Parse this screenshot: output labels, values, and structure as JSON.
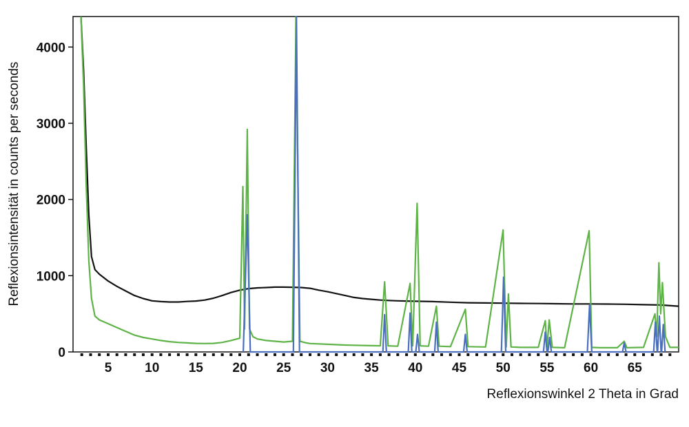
{
  "chart_data": {
    "type": "line",
    "title": "",
    "xlabel": "Reflexionswinkel 2 Theta in Grad",
    "ylabel": "Reflexionsintensität in counts per seconds",
    "xlim": [
      1,
      70
    ],
    "ylim": [
      0,
      4400
    ],
    "x_ticks": [
      5,
      10,
      15,
      20,
      25,
      30,
      35,
      40,
      45,
      50,
      55,
      60,
      65
    ],
    "y_ticks": [
      0,
      1000,
      2000,
      3000,
      4000
    ],
    "grid": false,
    "legend": "none",
    "series": [
      {
        "color": "#111111",
        "points": [
          [
            1.9,
            4400
          ],
          [
            2.2,
            3700
          ],
          [
            2.5,
            2700
          ],
          [
            2.8,
            1800
          ],
          [
            3.1,
            1250
          ],
          [
            3.5,
            1080
          ],
          [
            4,
            1020
          ],
          [
            5,
            930
          ],
          [
            6,
            860
          ],
          [
            7,
            800
          ],
          [
            8,
            740
          ],
          [
            9,
            700
          ],
          [
            10,
            670
          ],
          [
            11,
            660
          ],
          [
            12,
            655
          ],
          [
            13,
            655
          ],
          [
            14,
            662
          ],
          [
            15,
            668
          ],
          [
            16,
            680
          ],
          [
            17,
            705
          ],
          [
            18,
            740
          ],
          [
            19,
            780
          ],
          [
            20,
            810
          ],
          [
            21,
            830
          ],
          [
            22,
            840
          ],
          [
            23,
            845
          ],
          [
            24,
            850
          ],
          [
            25,
            850
          ],
          [
            26,
            848
          ],
          [
            27,
            845
          ],
          [
            28,
            835
          ],
          [
            29,
            810
          ],
          [
            30,
            790
          ],
          [
            31,
            765
          ],
          [
            32,
            740
          ],
          [
            33,
            715
          ],
          [
            34,
            700
          ],
          [
            35,
            690
          ],
          [
            36,
            680
          ],
          [
            37,
            675
          ],
          [
            38,
            670
          ],
          [
            39,
            668
          ],
          [
            40,
            665
          ],
          [
            42,
            660
          ],
          [
            44,
            652
          ],
          [
            46,
            645
          ],
          [
            48,
            642
          ],
          [
            50,
            640
          ],
          [
            52,
            637
          ],
          [
            54,
            635
          ],
          [
            56,
            632
          ],
          [
            58,
            630
          ],
          [
            60,
            630
          ],
          [
            62,
            628
          ],
          [
            64,
            625
          ],
          [
            66,
            620
          ],
          [
            68,
            615
          ],
          [
            70,
            600
          ]
        ]
      },
      {
        "color": "#5db346",
        "points": [
          [
            1.9,
            4400
          ],
          [
            2.2,
            3500
          ],
          [
            2.5,
            2200
          ],
          [
            2.8,
            1200
          ],
          [
            3.1,
            700
          ],
          [
            3.5,
            470
          ],
          [
            4,
            420
          ],
          [
            5,
            370
          ],
          [
            6,
            320
          ],
          [
            7,
            270
          ],
          [
            8,
            220
          ],
          [
            9,
            190
          ],
          [
            10,
            170
          ],
          [
            11,
            150
          ],
          [
            12,
            135
          ],
          [
            13,
            125
          ],
          [
            14,
            118
          ],
          [
            15,
            112
          ],
          [
            16,
            110
          ],
          [
            17,
            112
          ],
          [
            18,
            125
          ],
          [
            19,
            150
          ],
          [
            20,
            180
          ],
          [
            20.35,
            2170
          ],
          [
            20.55,
            300
          ],
          [
            20.85,
            2920
          ],
          [
            21.1,
            300
          ],
          [
            21.5,
            200
          ],
          [
            22,
            170
          ],
          [
            23,
            150
          ],
          [
            24,
            140
          ],
          [
            25,
            130
          ],
          [
            26,
            140
          ],
          [
            26.4,
            4400
          ],
          [
            26.85,
            140
          ],
          [
            27.5,
            120
          ],
          [
            28,
            110
          ],
          [
            30,
            100
          ],
          [
            32,
            90
          ],
          [
            34,
            85
          ],
          [
            36,
            80
          ],
          [
            36.5,
            920
          ],
          [
            36.9,
            80
          ],
          [
            38,
            75
          ],
          [
            39.4,
            900
          ],
          [
            39.7,
            80
          ],
          [
            40.2,
            1950
          ],
          [
            40.55,
            80
          ],
          [
            41.5,
            75
          ],
          [
            42.4,
            600
          ],
          [
            42.7,
            75
          ],
          [
            44,
            70
          ],
          [
            45.7,
            560
          ],
          [
            46,
            70
          ],
          [
            48,
            65
          ],
          [
            50,
            1600
          ],
          [
            50.35,
            65
          ],
          [
            50.6,
            760
          ],
          [
            50.9,
            65
          ],
          [
            52,
            60
          ],
          [
            54,
            60
          ],
          [
            54.8,
            410
          ],
          [
            55,
            60
          ],
          [
            55.25,
            420
          ],
          [
            55.6,
            60
          ],
          [
            57,
            55
          ],
          [
            59.8,
            1590
          ],
          [
            60.1,
            60
          ],
          [
            61,
            55
          ],
          [
            63,
            55
          ],
          [
            63.8,
            140
          ],
          [
            64.1,
            55
          ],
          [
            66,
            60
          ],
          [
            67.3,
            500
          ],
          [
            67.5,
            200
          ],
          [
            67.75,
            1170
          ],
          [
            67.95,
            500
          ],
          [
            68.15,
            910
          ],
          [
            68.5,
            200
          ],
          [
            69,
            60
          ],
          [
            70,
            60
          ]
        ]
      },
      {
        "color": "#4a6fbe",
        "points": [
          [
            20.4,
            0
          ],
          [
            20.85,
            1800
          ],
          [
            21.2,
            0
          ],
          [
            26.1,
            0
          ],
          [
            26.45,
            4400
          ],
          [
            26.8,
            0
          ],
          [
            36.3,
            0
          ],
          [
            36.5,
            490
          ],
          [
            36.7,
            0
          ],
          [
            39.2,
            0
          ],
          [
            39.4,
            510
          ],
          [
            39.6,
            0
          ],
          [
            40.05,
            0
          ],
          [
            40.25,
            230
          ],
          [
            40.45,
            0
          ],
          [
            42.2,
            0
          ],
          [
            42.4,
            390
          ],
          [
            42.6,
            0
          ],
          [
            45.5,
            0
          ],
          [
            45.7,
            230
          ],
          [
            45.9,
            0
          ],
          [
            49.8,
            0
          ],
          [
            50.05,
            980
          ],
          [
            50.3,
            0
          ],
          [
            54.6,
            0
          ],
          [
            54.8,
            260
          ],
          [
            55,
            0
          ],
          [
            55.1,
            0
          ],
          [
            55.3,
            190
          ],
          [
            55.5,
            0
          ],
          [
            59.6,
            0
          ],
          [
            59.85,
            620
          ],
          [
            60.1,
            0
          ],
          [
            63.6,
            0
          ],
          [
            63.8,
            120
          ],
          [
            64,
            0
          ],
          [
            67.15,
            0
          ],
          [
            67.35,
            390
          ],
          [
            67.55,
            0
          ],
          [
            67.6,
            0
          ],
          [
            67.8,
            470
          ],
          [
            68,
            0
          ],
          [
            68.05,
            0
          ],
          [
            68.25,
            360
          ],
          [
            68.45,
            0
          ]
        ]
      }
    ]
  }
}
